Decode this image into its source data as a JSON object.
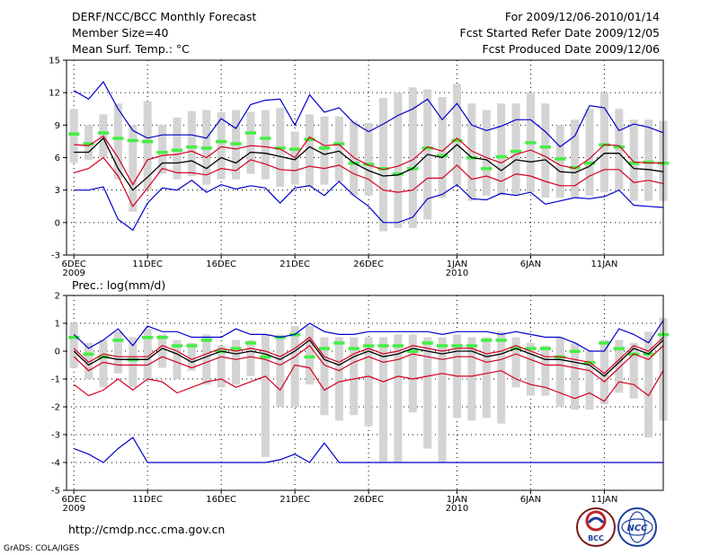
{
  "header": {
    "title": "DERF/NCC/BCC Monthly Forecast",
    "member_size": "Member Size=40",
    "variable": "Mean Surf. Temp.: °C",
    "period": "For 2009/12/06-2010/01/14",
    "start_date": "Fcst Started Refer Date 2009/12/05",
    "produced_date": "Fcst Produced Date 2009/12/06"
  },
  "footer": {
    "url": "http://cmdp.ncc.cma.gov.cn",
    "grads": "GrADS: COLA/IGES",
    "logo_bcc": "BCC",
    "logo_ncc": "NCC"
  },
  "colors": {
    "mean": "#000000",
    "spread": "#d40020",
    "envelope": "#0000cc",
    "bar": "#d4d4d4",
    "climo": "#44ee44",
    "grid": "#000000"
  },
  "chart_data": [
    {
      "type": "line",
      "title": "Mean Surf. Temp.: °C",
      "x_labels": [
        {
          "day": 1,
          "label": "6DEC",
          "sub": "2009"
        },
        {
          "day": 6,
          "label": "11DEC",
          "sub": ""
        },
        {
          "day": 11,
          "label": "16DEC",
          "sub": ""
        },
        {
          "day": 16,
          "label": "21DEC",
          "sub": ""
        },
        {
          "day": 21,
          "label": "26DEC",
          "sub": ""
        },
        {
          "day": 27,
          "label": "1JAN",
          "sub": "2010"
        },
        {
          "day": 32,
          "label": "6JAN",
          "sub": ""
        },
        {
          "day": 37,
          "label": "11JAN",
          "sub": ""
        }
      ],
      "xlim": [
        0.5,
        41
      ],
      "ylim": [
        -3,
        15
      ],
      "yticks": [
        -3,
        0,
        3,
        6,
        9,
        12,
        15
      ],
      "grid": true,
      "series": [
        {
          "name": "ensemble-mean",
          "values": [
            6.5,
            6.5,
            7.8,
            5.0,
            3.0,
            4.2,
            5.5,
            5.5,
            5.7,
            5.0,
            6.0,
            5.5,
            6.5,
            6.4,
            6.1,
            5.8,
            7.0,
            6.3,
            6.6,
            5.5,
            4.8,
            4.3,
            4.4,
            5.0,
            6.3,
            6.0,
            7.2,
            6.0,
            5.8,
            4.8,
            5.8,
            5.6,
            5.8,
            4.7,
            4.6,
            5.2,
            6.4,
            6.4,
            5.0,
            4.9,
            4.7
          ]
        },
        {
          "name": "upper-spread",
          "values": [
            7.2,
            7.1,
            8.0,
            6.0,
            3.5,
            5.8,
            6.2,
            6.3,
            6.6,
            6.0,
            7.0,
            6.8,
            7.1,
            7.0,
            6.8,
            6.0,
            7.9,
            7.1,
            7.2,
            6.0,
            5.3,
            4.9,
            5.2,
            5.8,
            7.0,
            6.6,
            7.8,
            6.6,
            6.0,
            5.5,
            6.3,
            6.7,
            6.1,
            5.3,
            5.0,
            5.9,
            7.2,
            7.1,
            5.6,
            5.5,
            5.5
          ]
        },
        {
          "name": "lower-spread",
          "values": [
            4.6,
            5.0,
            6.0,
            4.3,
            1.5,
            3.2,
            5.0,
            4.6,
            4.6,
            4.4,
            5.0,
            4.8,
            5.8,
            5.4,
            4.9,
            4.8,
            5.2,
            5.0,
            5.3,
            4.5,
            4.0,
            3.0,
            2.8,
            3.0,
            4.1,
            4.1,
            5.3,
            4.0,
            4.3,
            3.8,
            4.5,
            4.3,
            3.8,
            3.4,
            3.4,
            4.3,
            4.9,
            4.9,
            3.7,
            3.9,
            3.6
          ]
        },
        {
          "name": "ensemble-max",
          "values": [
            12.2,
            11.4,
            13.0,
            10.5,
            8.5,
            7.8,
            8.1,
            8.1,
            8.1,
            7.8,
            9.6,
            8.7,
            10.9,
            11.3,
            11.4,
            9.0,
            11.8,
            10.2,
            10.6,
            9.2,
            8.4,
            9.1,
            9.9,
            10.5,
            11.4,
            9.5,
            11.0,
            9.0,
            8.5,
            8.9,
            9.5,
            9.5,
            8.4,
            7.0,
            8.0,
            10.8,
            10.6,
            8.5,
            9.1,
            8.8,
            8.3
          ]
        },
        {
          "name": "ensemble-min",
          "values": [
            3.0,
            3.0,
            3.3,
            0.3,
            -0.7,
            1.8,
            3.2,
            3.0,
            3.9,
            2.8,
            3.5,
            3.1,
            3.4,
            3.2,
            1.8,
            3.2,
            3.4,
            2.5,
            3.8,
            2.5,
            1.5,
            0.0,
            0.0,
            0.5,
            2.2,
            2.6,
            3.5,
            2.2,
            2.1,
            2.7,
            2.5,
            2.8,
            1.7,
            2.0,
            2.3,
            2.2,
            2.4,
            3.0,
            1.6,
            1.5,
            1.4
          ]
        }
      ],
      "bars": {
        "bottoms": [
          5.5,
          5.8,
          6.0,
          4.0,
          1.0,
          3.0,
          4.5,
          4.0,
          4.3,
          3.5,
          4.0,
          4.0,
          4.5,
          4.0,
          3.3,
          3.5,
          3.3,
          3.5,
          3.8,
          2.5,
          2.5,
          -0.8,
          -0.5,
          -0.5,
          0.3,
          2.3,
          3.5,
          2.0,
          2.5,
          2.5,
          2.5,
          2.8,
          2.3,
          2.3,
          2.3,
          2.5,
          2.8,
          3.0,
          2.0,
          2.0,
          2.0
        ],
        "tops": [
          10.5,
          9.0,
          10.0,
          11.0,
          9.0,
          11.2,
          9.0,
          9.7,
          10.3,
          10.4,
          10.2,
          10.4,
          10.2,
          10.4,
          10.6,
          8.4,
          10.0,
          9.8,
          9.8,
          9.4,
          9.2,
          11.5,
          12.0,
          12.5,
          12.3,
          11.6,
          12.8,
          11.0,
          10.4,
          11.0,
          11.0,
          12.0,
          11.0,
          9.0,
          9.5,
          10.5,
          12.0,
          10.5,
          9.5,
          9.5,
          9.4
        ]
      },
      "climatology": [
        8.2,
        7.3,
        8.3,
        7.8,
        7.6,
        7.5,
        6.5,
        6.7,
        7.0,
        6.9,
        7.5,
        7.3,
        8.3,
        7.8,
        6.9,
        6.8,
        7.7,
        6.9,
        7.3,
        5.5,
        5.4,
        5.0,
        4.5,
        5.0,
        6.9,
        6.2,
        7.6,
        6.0,
        5.0,
        6.1,
        6.6,
        7.4,
        7.0,
        5.9,
        5.1,
        5.5,
        7.2,
        7.0,
        5.5,
        5.6,
        5.5
      ]
    },
    {
      "type": "line",
      "title": "Prec.: log(mm/d)",
      "x_labels": [
        {
          "day": 1,
          "label": "6DEC",
          "sub": "2009"
        },
        {
          "day": 6,
          "label": "11DEC",
          "sub": ""
        },
        {
          "day": 11,
          "label": "16DEC",
          "sub": ""
        },
        {
          "day": 16,
          "label": "21DEC",
          "sub": ""
        },
        {
          "day": 21,
          "label": "26DEC",
          "sub": ""
        },
        {
          "day": 27,
          "label": "1JAN",
          "sub": "2010"
        },
        {
          "day": 32,
          "label": "6JAN",
          "sub": ""
        },
        {
          "day": 37,
          "label": "11JAN",
          "sub": ""
        }
      ],
      "xlim": [
        0.5,
        41
      ],
      "ylim": [
        -5,
        2
      ],
      "yticks": [
        -5,
        -4,
        -3,
        -2,
        -1,
        0,
        1,
        2
      ],
      "grid": true,
      "series": [
        {
          "name": "ensemble-mean",
          "values": [
            0.0,
            -0.5,
            -0.2,
            -0.3,
            -0.3,
            -0.3,
            0.1,
            -0.1,
            -0.4,
            -0.2,
            0.0,
            -0.1,
            0.0,
            -0.1,
            -0.3,
            0.0,
            0.4,
            -0.3,
            -0.5,
            -0.2,
            0.0,
            -0.2,
            -0.1,
            0.1,
            0.0,
            -0.1,
            0.0,
            0.0,
            -0.2,
            -0.1,
            0.1,
            -0.1,
            -0.3,
            -0.3,
            -0.4,
            -0.5,
            -0.9,
            -0.4,
            0.1,
            -0.1,
            0.4
          ]
        },
        {
          "name": "upper-spread",
          "values": [
            0.1,
            -0.4,
            -0.1,
            -0.2,
            -0.2,
            -0.2,
            0.2,
            0.0,
            -0.3,
            -0.1,
            0.1,
            0.0,
            0.1,
            0.0,
            -0.2,
            0.1,
            0.5,
            -0.2,
            -0.4,
            -0.1,
            0.1,
            -0.1,
            0.0,
            0.2,
            0.1,
            0.0,
            0.1,
            0.1,
            -0.1,
            0.0,
            0.2,
            0.0,
            -0.2,
            -0.2,
            -0.3,
            -0.4,
            -0.8,
            -0.3,
            0.2,
            0.0,
            0.5
          ]
        },
        {
          "name": "lower-spread",
          "values": [
            -0.2,
            -0.7,
            -0.4,
            -0.5,
            -0.5,
            -0.5,
            -0.2,
            -0.4,
            -0.6,
            -0.4,
            -0.2,
            -0.3,
            -0.2,
            -0.3,
            -0.5,
            -0.2,
            0.2,
            -0.5,
            -0.7,
            -0.4,
            -0.2,
            -0.4,
            -0.3,
            -0.1,
            -0.2,
            -0.3,
            -0.2,
            -0.2,
            -0.4,
            -0.3,
            -0.1,
            -0.3,
            -0.5,
            -0.5,
            -0.6,
            -0.7,
            -1.1,
            -0.6,
            -0.1,
            -0.3,
            0.2
          ]
        },
        {
          "name": "ensemble-min-spread",
          "values": [
            -1.2,
            -1.6,
            -1.4,
            -1.0,
            -1.4,
            -1.0,
            -1.1,
            -1.5,
            -1.3,
            -1.1,
            -1.0,
            -1.3,
            -1.1,
            -0.9,
            -1.4,
            -0.5,
            -0.6,
            -1.4,
            -1.1,
            -1.0,
            -0.9,
            -1.1,
            -0.9,
            -1.0,
            -0.9,
            -0.8,
            -0.9,
            -0.9,
            -0.8,
            -0.7,
            -1.0,
            -1.2,
            -1.3,
            -1.5,
            -1.7,
            -1.5,
            -1.8,
            -1.1,
            -1.2,
            -1.6,
            -0.7
          ]
        },
        {
          "name": "ensemble-max",
          "values": [
            0.6,
            0.1,
            0.4,
            0.8,
            0.2,
            0.9,
            0.7,
            0.7,
            0.5,
            0.5,
            0.5,
            0.8,
            0.6,
            0.6,
            0.5,
            0.6,
            1.0,
            0.7,
            0.6,
            0.6,
            0.7,
            0.7,
            0.7,
            0.7,
            0.7,
            0.6,
            0.7,
            0.7,
            0.7,
            0.6,
            0.7,
            0.6,
            0.5,
            0.5,
            0.3,
            0.0,
            0.0,
            0.8,
            0.6,
            0.3,
            1.1
          ]
        },
        {
          "name": "ensemble-min",
          "values": [
            -3.5,
            -3.7,
            -4.0,
            -3.5,
            -3.1,
            -4.0,
            -4.0,
            -4.0,
            -4.0,
            -4.0,
            -4.0,
            -4.0,
            -4.0,
            -4.0,
            -3.9,
            -3.7,
            -4.0,
            -3.3,
            -4.0,
            -4.0,
            -4.0,
            -4.0,
            -4.0,
            -4.0,
            -4.0,
            -4.0,
            -4.0,
            -4.0,
            -4.0,
            -4.0,
            -4.0,
            -4.0,
            -4.0,
            -4.0,
            -4.0,
            -4.0,
            -4.0,
            -4.0,
            -4.0,
            -4.0,
            -4.0
          ]
        }
      ],
      "bars": {
        "bottoms": [
          -0.6,
          -1.0,
          -1.3,
          -0.8,
          -1.3,
          -1.0,
          -0.6,
          -1.0,
          -0.7,
          -1.2,
          -1.3,
          -1.2,
          -0.9,
          -3.8,
          -2.0,
          -2.0,
          -1.2,
          -2.3,
          -2.5,
          -2.3,
          -2.7,
          -4.0,
          -4.0,
          -2.2,
          -3.5,
          -4.0,
          -2.4,
          -2.5,
          -2.4,
          -2.6,
          -1.3,
          -1.6,
          -1.6,
          -2.0,
          -2.1,
          -2.1,
          -1.9,
          -1.5,
          -1.7,
          -3.1,
          -2.5
        ],
        "tops": [
          1.0,
          0.3,
          0.4,
          0.7,
          0.5,
          0.8,
          0.6,
          0.4,
          0.3,
          0.6,
          0.2,
          0.4,
          0.4,
          0.6,
          0.6,
          0.9,
          0.9,
          0.5,
          0.5,
          0.5,
          0.5,
          0.5,
          0.6,
          0.6,
          0.5,
          0.5,
          0.6,
          0.5,
          0.5,
          0.7,
          0.5,
          0.3,
          0.2,
          0.5,
          0.3,
          0.0,
          0.4,
          0.4,
          0.3,
          0.7,
          1.2
        ]
      },
      "climatology": [
        0.5,
        -0.1,
        -0.2,
        0.4,
        -0.3,
        0.5,
        0.5,
        0.2,
        0.2,
        0.4,
        0.0,
        0.1,
        0.3,
        -0.2,
        0.5,
        0.6,
        -0.2,
        0.1,
        0.3,
        0.1,
        0.2,
        0.2,
        0.2,
        0.0,
        0.3,
        0.2,
        0.2,
        0.2,
        0.4,
        0.4,
        0.1,
        0.1,
        0.1,
        -0.2,
        0.0,
        -0.4,
        0.3,
        0.1,
        -0.1,
        -0.1,
        0.6
      ]
    }
  ]
}
